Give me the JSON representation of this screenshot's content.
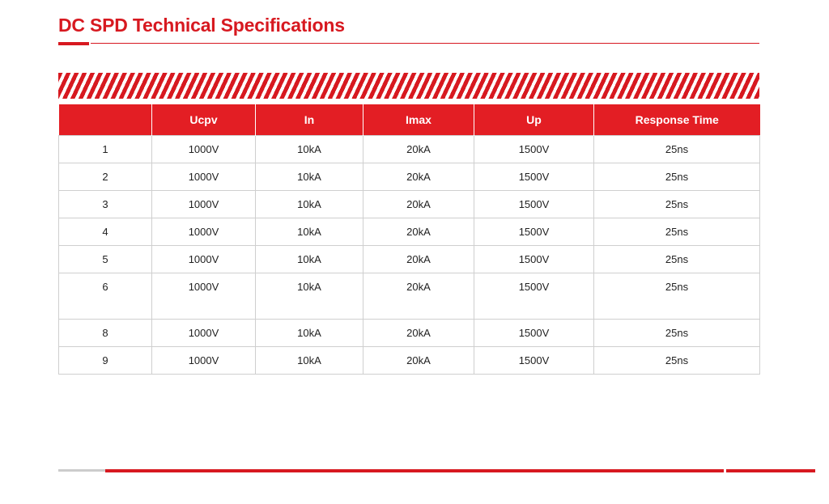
{
  "title": "DC SPD Technical Specifications",
  "colors": {
    "accent": "#d71920",
    "header_bg": "#e31e24"
  },
  "table": {
    "headers": [
      "",
      "Ucpv",
      "In",
      "Imax",
      "Up",
      "Response Time"
    ],
    "rows": [
      [
        "1",
        "1000V",
        "10kA",
        "20kA",
        "1500V",
        "25ns"
      ],
      [
        "2",
        "1000V",
        "10kA",
        "20kA",
        "1500V",
        "25ns"
      ],
      [
        "3",
        "1000V",
        "10kA",
        "20kA",
        "1500V",
        "25ns"
      ],
      [
        "4",
        "1000V",
        "10kA",
        "20kA",
        "1500V",
        "25ns"
      ],
      [
        "5",
        "1000V",
        "10kA",
        "20kA",
        "1500V",
        "25ns"
      ],
      [
        "6",
        "1000V",
        "10kA",
        "20kA",
        "1500V",
        "25ns"
      ],
      [
        "8",
        "1000V",
        "10kA",
        "20kA",
        "1500V",
        "25ns"
      ],
      [
        "9",
        "1000V",
        "10kA",
        "20kA",
        "1500V",
        "25ns"
      ]
    ]
  }
}
